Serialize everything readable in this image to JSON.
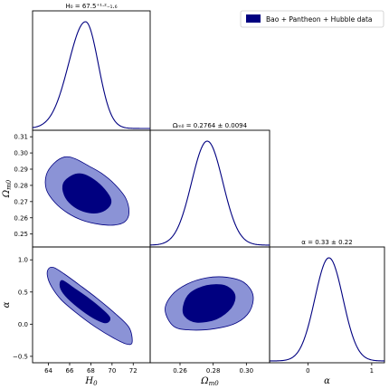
{
  "chart_data": {
    "type": "corner",
    "legend": {
      "label": "Bao + Pantheon + Hubble data",
      "placement": "top-right",
      "color": "#000080"
    },
    "colors": {
      "line": "#000080",
      "inner_contour": "#000080",
      "outer_contour": "#8b93d6"
    },
    "parameters": [
      {
        "name": "H0",
        "axis_label": "H",
        "axis_label_sub": "0",
        "title": "H₀ = 67.5⁺¹·²₋₁.₆",
        "mean": 67.5,
        "err_plus": 1.2,
        "err_minus": 1.6,
        "range": [
          62.5,
          73.6
        ],
        "ticks": [
          64,
          66,
          68,
          70,
          72
        ],
        "tick_labels": [
          "64",
          "66",
          "68",
          "70",
          "72"
        ]
      },
      {
        "name": "Omega_m0",
        "axis_label": "Ω",
        "axis_label_sub": "m0",
        "title": "Ωₘ₀ = 0.2764 ± 0.0094",
        "mean": 0.2764,
        "sigma": 0.0094,
        "range": [
          0.242,
          0.314
        ],
        "ticks": [
          0.25,
          0.26,
          0.27,
          0.28,
          0.29,
          0.3,
          0.31
        ],
        "tick_labels": [
          "0.25",
          "0.26",
          "0.27",
          "0.28",
          "0.29",
          "0.30",
          "0.31"
        ],
        "x_ticks": [
          0.26,
          0.28,
          0.3
        ],
        "x_tick_labels": [
          "0.26",
          "0.28",
          "0.30"
        ]
      },
      {
        "name": "alpha",
        "axis_label": "α",
        "axis_label_sub": "",
        "title": "α = 0.33 ± 0.22",
        "mean": 0.33,
        "sigma": 0.22,
        "range": [
          -0.6,
          1.2
        ],
        "ticks": [
          -0.5,
          0.0,
          0.5,
          1.0
        ],
        "tick_labels": [
          "−0.5",
          "0.0",
          "0.5",
          "1.0"
        ],
        "x_ticks": [
          0,
          1
        ],
        "x_tick_labels": [
          "0",
          "1"
        ]
      }
    ],
    "correlations": {
      "H0_Omega_m0": -0.3,
      "H0_alpha": -0.9,
      "Omega_m0_alpha": 0.1
    },
    "contours": {
      "H0_Omega_m0": {
        "outer": [
          [
            63.8,
            0.2865
          ],
          [
            64.5,
            0.2935
          ],
          [
            65.5,
            0.2975
          ],
          [
            66.5,
            0.2965
          ],
          [
            67.8,
            0.292
          ],
          [
            69.0,
            0.2875
          ],
          [
            70.2,
            0.281
          ],
          [
            71.3,
            0.272
          ],
          [
            71.6,
            0.263
          ],
          [
            71.2,
            0.2575
          ],
          [
            70.2,
            0.2555
          ],
          [
            68.8,
            0.256
          ],
          [
            67.2,
            0.2585
          ],
          [
            65.8,
            0.263
          ],
          [
            64.6,
            0.2695
          ],
          [
            63.8,
            0.2775
          ]
        ],
        "inner": [
          [
            65.4,
            0.281
          ],
          [
            66.2,
            0.286
          ],
          [
            67.2,
            0.287
          ],
          [
            68.3,
            0.2835
          ],
          [
            69.3,
            0.2775
          ],
          [
            69.9,
            0.271
          ],
          [
            69.6,
            0.266
          ],
          [
            68.6,
            0.263
          ],
          [
            67.3,
            0.264
          ],
          [
            66.2,
            0.268
          ],
          [
            65.5,
            0.274
          ]
        ]
      },
      "H0_alpha": {
        "outer": [
          [
            64.0,
            0.86
          ],
          [
            64.5,
            0.88
          ],
          [
            65.5,
            0.78
          ],
          [
            67.0,
            0.6
          ],
          [
            68.6,
            0.4
          ],
          [
            70.2,
            0.18
          ],
          [
            71.6,
            -0.05
          ],
          [
            71.9,
            -0.28
          ],
          [
            71.4,
            -0.31
          ],
          [
            70.2,
            -0.22
          ],
          [
            68.4,
            -0.04
          ],
          [
            66.6,
            0.18
          ],
          [
            65.2,
            0.38
          ],
          [
            64.3,
            0.58
          ],
          [
            63.9,
            0.75
          ]
        ],
        "inner": [
          [
            65.3,
            0.68
          ],
          [
            66.4,
            0.56
          ],
          [
            67.8,
            0.4
          ],
          [
            69.0,
            0.24
          ],
          [
            69.8,
            0.1
          ],
          [
            69.4,
            0.02
          ],
          [
            68.2,
            0.1
          ],
          [
            66.8,
            0.26
          ],
          [
            65.6,
            0.44
          ],
          [
            65.1,
            0.58
          ]
        ]
      },
      "Omega_m0_alpha": {
        "outer": [
          [
            0.251,
            0.22
          ],
          [
            0.255,
            0.45
          ],
          [
            0.264,
            0.62
          ],
          [
            0.276,
            0.72
          ],
          [
            0.288,
            0.73
          ],
          [
            0.2985,
            0.65
          ],
          [
            0.304,
            0.45
          ],
          [
            0.302,
            0.2
          ],
          [
            0.294,
            0.02
          ],
          [
            0.281,
            -0.07
          ],
          [
            0.266,
            -0.09
          ],
          [
            0.256,
            -0.03
          ]
        ],
        "inner": [
          [
            0.262,
            0.28
          ],
          [
            0.266,
            0.48
          ],
          [
            0.276,
            0.6
          ],
          [
            0.287,
            0.6
          ],
          [
            0.293,
            0.46
          ],
          [
            0.291,
            0.26
          ],
          [
            0.282,
            0.08
          ],
          [
            0.27,
            0.03
          ],
          [
            0.263,
            0.12
          ]
        ]
      }
    }
  }
}
